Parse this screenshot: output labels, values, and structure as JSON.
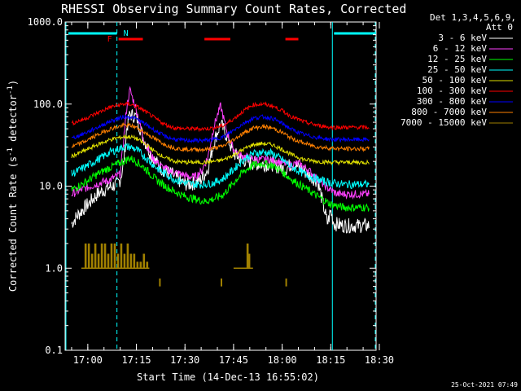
{
  "chart_data": {
    "type": "line",
    "title": "RHESSI Observing Summary Count Rates, Corrected",
    "xlabel": "Start Time (14-Dec-13 16:55:02)",
    "ylabel_main": "Corrected Count Rate (s",
    "ylabel_sup1": "-1",
    "ylabel_mid": " detector",
    "ylabel_sup2": "-1",
    "ylabel_end": ")",
    "ylog": true,
    "ylim": [
      0.1,
      1000.0
    ],
    "xlim_minutes": [
      -2,
      94
    ],
    "x_ticks": [
      {
        "label": "17:00",
        "minute": 5
      },
      {
        "label": "17:15",
        "minute": 20
      },
      {
        "label": "17:30",
        "minute": 35
      },
      {
        "label": "17:45",
        "minute": 50
      },
      {
        "label": "18:00",
        "minute": 65
      },
      {
        "label": "18:15",
        "minute": 80
      },
      {
        "label": "18:30",
        "minute": 95
      }
    ],
    "y_ticks": [
      {
        "label": "1000.0",
        "value": 1000.0
      },
      {
        "label": "100.0",
        "value": 100.0
      },
      {
        "label": "10.0",
        "value": 10.0
      },
      {
        "label": "1.0",
        "value": 1.0
      },
      {
        "label": "0.1",
        "value": 0.1
      }
    ],
    "legend_header": [
      "Det 1,3,4,5,6,9,",
      "Att 0"
    ],
    "series": [
      {
        "name": "3 - 6 keV",
        "color": "#ffffff",
        "x": [
          0,
          2,
          5,
          8,
          11,
          14,
          15,
          16,
          17,
          18,
          20,
          22,
          25,
          28,
          31,
          34,
          36,
          38,
          40,
          42,
          44,
          46,
          48,
          50,
          52,
          54,
          56,
          58,
          60,
          62,
          64,
          66,
          68,
          70,
          72,
          74,
          76,
          79,
          80,
          81,
          84,
          87,
          90,
          92
        ],
        "y": [
          3.5,
          4.5,
          6,
          8,
          9.5,
          10.5,
          12,
          18,
          50,
          75,
          70,
          40,
          22,
          16,
          14,
          11,
          10.5,
          11,
          12,
          16,
          35,
          58,
          40,
          25,
          22,
          20,
          19,
          18.5,
          18.5,
          18.5,
          17,
          16,
          19,
          17,
          15,
          13,
          11.5,
          3.5,
          5,
          3.5,
          3.3,
          3.3,
          3.3,
          3.3
        ]
      },
      {
        "name": "6 - 12 keV",
        "color": "#ff40ff",
        "x": [
          0,
          3,
          6,
          9,
          12,
          15,
          16,
          17,
          18,
          20,
          22,
          25,
          28,
          31,
          34,
          36,
          38,
          40,
          42,
          44,
          46,
          48,
          50,
          52,
          55,
          58,
          61,
          64,
          67,
          70,
          73,
          76,
          79,
          82,
          85,
          88,
          92
        ],
        "y": [
          8,
          9,
          10,
          11,
          12,
          14,
          35,
          90,
          150,
          85,
          40,
          22,
          17,
          15,
          14,
          13,
          13,
          15,
          22,
          55,
          95,
          45,
          28,
          24,
          22,
          21,
          21,
          20,
          18,
          19,
          16,
          12,
          9.5,
          8,
          8,
          8,
          8
        ]
      },
      {
        "name": "12 - 25 keV",
        "color": "#00ff00",
        "x": [
          0,
          4,
          8,
          12,
          16,
          18,
          20,
          23,
          26,
          29,
          32,
          35,
          38,
          41,
          44,
          47,
          50,
          53,
          56,
          59,
          62,
          65,
          68,
          72,
          76,
          80,
          84,
          88,
          92
        ],
        "y": [
          9,
          11,
          14,
          17,
          20,
          22,
          20,
          16,
          12,
          10,
          8.5,
          7.5,
          7,
          6.5,
          7,
          8,
          11,
          15,
          18,
          19,
          18,
          15,
          12,
          9.5,
          7.5,
          6,
          5.5,
          5.5,
          5.5
        ]
      },
      {
        "name": "25 - 50 keV",
        "color": "#00ffff",
        "x": [
          0,
          4,
          8,
          12,
          16,
          18,
          20,
          23,
          26,
          29,
          32,
          35,
          38,
          41,
          44,
          47,
          50,
          53,
          56,
          59,
          62,
          65,
          68,
          72,
          76,
          80,
          84,
          88,
          92
        ],
        "y": [
          14,
          17,
          21,
          26,
          30,
          30,
          28,
          22,
          17,
          14,
          12,
          11,
          10.5,
          10.5,
          11,
          12.5,
          16,
          21,
          25,
          26,
          25,
          21,
          17,
          14,
          12,
          11,
          10.5,
          10.5,
          10.5
        ]
      },
      {
        "name": "50 - 100 keV",
        "color": "#e0e000",
        "x": [
          0,
          4,
          8,
          12,
          16,
          18,
          20,
          23,
          26,
          29,
          32,
          35,
          38,
          41,
          44,
          47,
          50,
          53,
          56,
          59,
          62,
          65,
          68,
          72,
          76,
          80,
          84,
          88,
          92
        ],
        "y": [
          23,
          27,
          32,
          37,
          40,
          40,
          38,
          32,
          26,
          22,
          20,
          19.5,
          19.5,
          19.5,
          20,
          21,
          24,
          28,
          32,
          33,
          32,
          28,
          24,
          21,
          20,
          19.5,
          19.5,
          19.5,
          19.5
        ]
      },
      {
        "name": "100 - 300 keV",
        "color": "#ff0000",
        "x": [
          0,
          4,
          8,
          12,
          16,
          18,
          20,
          23,
          26,
          29,
          32,
          35,
          38,
          41,
          44,
          47,
          50,
          53,
          56,
          59,
          62,
          65,
          68,
          72,
          76,
          80,
          84,
          88,
          92
        ],
        "y": [
          58,
          66,
          78,
          92,
          100,
          100,
          94,
          80,
          66,
          56,
          51,
          50,
          50,
          50,
          51,
          55,
          66,
          82,
          98,
          100,
          95,
          83,
          70,
          60,
          55,
          52,
          52,
          52,
          52
        ]
      },
      {
        "name": "300 - 800 keV",
        "color": "#0000ff",
        "x": [
          0,
          4,
          8,
          12,
          16,
          18,
          20,
          23,
          26,
          29,
          32,
          35,
          38,
          41,
          44,
          47,
          50,
          53,
          56,
          59,
          62,
          65,
          68,
          72,
          76,
          80,
          84,
          88,
          92
        ],
        "y": [
          38,
          44,
          52,
          62,
          70,
          70,
          66,
          56,
          47,
          40,
          37,
          36,
          36,
          36,
          37,
          40,
          48,
          58,
          67,
          70,
          67,
          58,
          49,
          42,
          39,
          37,
          37,
          37,
          37
        ]
      },
      {
        "name": "800 - 7000 keV",
        "color": "#ff8000",
        "x": [
          0,
          4,
          8,
          12,
          16,
          18,
          20,
          23,
          26,
          29,
          32,
          35,
          38,
          41,
          44,
          47,
          50,
          53,
          56,
          59,
          62,
          65,
          68,
          72,
          76,
          80,
          84,
          88,
          92
        ],
        "y": [
          30,
          35,
          42,
          50,
          55,
          55,
          52,
          44,
          37,
          32,
          29,
          28,
          28,
          28,
          29,
          31,
          37,
          44,
          51,
          53,
          51,
          45,
          38,
          33,
          30,
          29,
          28.5,
          28.5,
          28.5
        ]
      },
      {
        "name": "7000 - 15000 keV",
        "color": "#a08000",
        "bars": [
          {
            "x": 4,
            "y": 2
          },
          {
            "x": 5,
            "y": 2
          },
          {
            "x": 6,
            "y": 1.5
          },
          {
            "x": 7,
            "y": 2
          },
          {
            "x": 8,
            "y": 1.5
          },
          {
            "x": 9,
            "y": 2
          },
          {
            "x": 10,
            "y": 2
          },
          {
            "x": 11,
            "y": 1.5
          },
          {
            "x": 12,
            "y": 2
          },
          {
            "x": 13,
            "y": 2
          },
          {
            "x": 14,
            "y": 1.5
          },
          {
            "x": 15,
            "y": 2
          },
          {
            "x": 16,
            "y": 1.5
          },
          {
            "x": 17,
            "y": 2
          },
          {
            "x": 18,
            "y": 1.5
          },
          {
            "x": 19,
            "y": 1.5
          },
          {
            "x": 20,
            "y": 1.2
          },
          {
            "x": 21,
            "y": 1.2
          },
          {
            "x": 22,
            "y": 1.5
          },
          {
            "x": 23,
            "y": 1.2
          },
          {
            "x": 54,
            "y": 2
          },
          {
            "x": 54.5,
            "y": 1.5
          }
        ],
        "low_ticks": [
          {
            "x": 27
          },
          {
            "x": 46
          },
          {
            "x": 66
          }
        ]
      }
    ],
    "flag_bars": [
      {
        "name": "Night",
        "color": "#00ffff",
        "label": "N",
        "ranges": [
          [
            -1,
            14
          ],
          [
            81,
            94
          ]
        ]
      },
      {
        "name": "Flare",
        "color": "#ff0000",
        "label": "F",
        "ranges": [
          [
            14.5,
            22
          ],
          [
            41,
            49
          ],
          [
            66,
            70
          ]
        ]
      }
    ],
    "vertical_lines": [
      {
        "minute": 14,
        "color": "#00ffff",
        "style": "dashed"
      },
      {
        "minute": 80.5,
        "color": "#00ffff",
        "style": "solid"
      },
      {
        "minute": 95,
        "color": "#00ffff",
        "style": "dashed"
      }
    ]
  },
  "timestamp": "25-Oct-2021 07:49"
}
